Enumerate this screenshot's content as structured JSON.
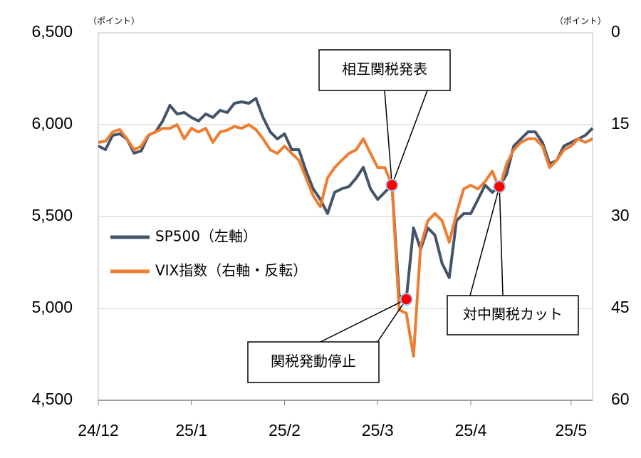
{
  "chart_data": {
    "type": "line",
    "y_unit": "（ポイント）",
    "y2_unit": "（ポイント）",
    "categories": [
      "24/12",
      null,
      null,
      null,
      null,
      null,
      null,
      null,
      null,
      null,
      null,
      null,
      null,
      "25/1",
      null,
      null,
      null,
      null,
      null,
      null,
      null,
      null,
      null,
      null,
      null,
      null,
      "25/2",
      null,
      null,
      null,
      null,
      null,
      null,
      null,
      null,
      null,
      null,
      null,
      null,
      "25/3",
      null,
      null,
      null,
      null,
      null,
      null,
      null,
      null,
      null,
      null,
      null,
      null,
      "25/4",
      null,
      null,
      null,
      null,
      null,
      null,
      null,
      null,
      null,
      null,
      null,
      null,
      null,
      "25/5",
      null,
      null,
      null
    ],
    "series": [
      {
        "name": "SP500（左軸）",
        "color": "#44546a",
        "axis": "y",
        "values": [
          5884,
          5864,
          5942,
          5950,
          5922,
          5845,
          5857,
          5942,
          5961,
          6020,
          6105,
          6058,
          6066,
          6039,
          6020,
          6058,
          6039,
          6078,
          6066,
          6116,
          6124,
          6116,
          6143,
          6039,
          5961,
          5922,
          5950,
          5864,
          5864,
          5748,
          5651,
          5593,
          5516,
          5632,
          5651,
          5663,
          5709,
          5768,
          5651,
          5593,
          5632,
          5671,
          5070,
          5050,
          5438,
          5322,
          5438,
          5399,
          5244,
          5167,
          5477,
          5516,
          5516,
          5593,
          5671,
          5632,
          5663,
          5729,
          5884,
          5922,
          5961,
          5961,
          5903,
          5787,
          5806,
          5884,
          5903,
          5922,
          5942,
          5981
        ]
      },
      {
        "name": "VIX指数（右軸・反転）",
        "color": "#ed7d31",
        "axis": "y2",
        "values": [
          17.9,
          17.7,
          16.2,
          15.8,
          17.3,
          19.1,
          18.5,
          16.7,
          16.2,
          15.6,
          15.6,
          15.0,
          17.3,
          15.6,
          16.2,
          15.6,
          17.9,
          16.2,
          15.9,
          15.3,
          15.6,
          15.0,
          15.8,
          17.3,
          19.1,
          19.7,
          18.5,
          19.7,
          20.8,
          23.7,
          26.6,
          28.4,
          23.7,
          22.0,
          20.8,
          19.7,
          19.1,
          17.3,
          19.7,
          22.0,
          22.0,
          24.9,
          45.2,
          45.8,
          52.8,
          34.8,
          30.7,
          29.5,
          30.7,
          34.2,
          29.5,
          25.5,
          24.9,
          25.5,
          24.3,
          22.6,
          25.5,
          21.4,
          19.1,
          17.9,
          17.3,
          17.3,
          18.5,
          22.0,
          20.8,
          19.1,
          18.5,
          17.3,
          17.9,
          17.3
        ]
      }
    ],
    "ylim": [
      4500,
      6500
    ],
    "yticks": [
      {
        "value": 4500,
        "label": "4,500"
      },
      {
        "value": 5000,
        "label": "5,000"
      },
      {
        "value": 5500,
        "label": "5,500"
      },
      {
        "value": 6000,
        "label": "6,000"
      },
      {
        "value": 6500,
        "label": "6,500"
      }
    ],
    "y2lim": [
      60,
      0
    ],
    "y2ticks": [
      0,
      15,
      30,
      45,
      60
    ],
    "grid": true,
    "marker_color": "#ff0000",
    "annotations": [
      "相互関税発表",
      "関税発動停止",
      "対中関税カット"
    ]
  }
}
